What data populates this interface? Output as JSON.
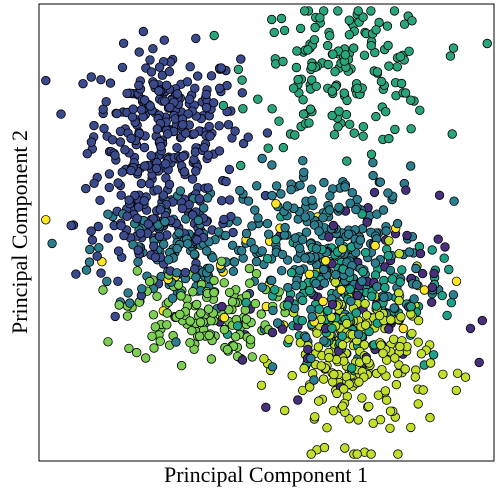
{
  "chart_data": {
    "type": "scatter",
    "title": "",
    "xlabel": "Principal Component 1",
    "ylabel": "Principal Component 2",
    "xlim": [
      0,
      100
    ],
    "ylim": [
      0,
      100
    ],
    "x_ticks_shown": false,
    "y_ticks_shown": false,
    "grid": false,
    "legend": "none",
    "colormap": "viridis",
    "marker": "circle",
    "marker_edge_color": "#000000",
    "clusters": [
      {
        "color": "#3b4a8c",
        "center": [
          28,
          74
        ],
        "spread": [
          8,
          8
        ],
        "count": 260
      },
      {
        "color": "#3b4a8c",
        "center": [
          26,
          52
        ],
        "spread": [
          9,
          6
        ],
        "count": 140
      },
      {
        "color": "#2aa57a",
        "center": [
          67,
          85
        ],
        "spread": [
          10,
          8
        ],
        "count": 170
      },
      {
        "color": "#2c7d8e",
        "center": [
          32,
          46
        ],
        "spread": [
          10,
          7
        ],
        "count": 130
      },
      {
        "color": "#7ccf52",
        "center": [
          35,
          32
        ],
        "spread": [
          8,
          5
        ],
        "count": 140
      },
      {
        "color": "#2c7d8e",
        "center": [
          65,
          46
        ],
        "spread": [
          10,
          9
        ],
        "count": 260
      },
      {
        "color": "#c3df2e",
        "center": [
          70,
          22
        ],
        "spread": [
          8,
          9
        ],
        "count": 230
      },
      {
        "color": "#1fa187",
        "center": [
          68,
          36
        ],
        "spread": [
          10,
          7
        ],
        "count": 160
      },
      {
        "color": "#46307a",
        "center": [
          66,
          34
        ],
        "spread": [
          11,
          12
        ],
        "count": 70
      },
      {
        "color": "#fde725",
        "center": [
          50,
          40
        ],
        "spread": [
          20,
          8
        ],
        "count": 30
      }
    ]
  }
}
